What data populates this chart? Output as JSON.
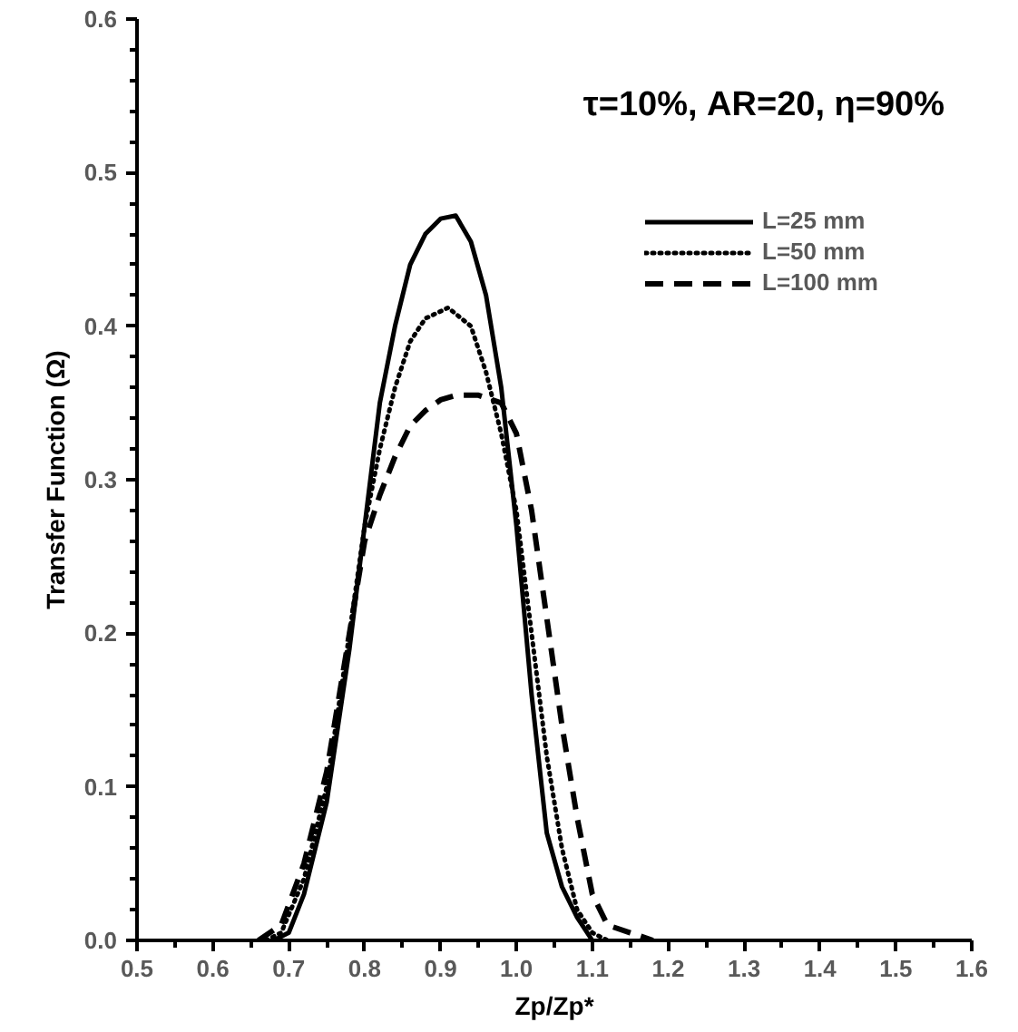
{
  "chart_data": {
    "type": "line",
    "xlabel": "Zp/Zp*",
    "ylabel": "Transfer Function (Ω)",
    "annotations": [
      "τ=10%, AR=20, η=90%"
    ],
    "xlim": [
      0.5,
      1.6
    ],
    "xticks": [
      0.5,
      0.6,
      0.7,
      0.8,
      0.9,
      {
        "value": 1.0,
        "label": "1.0"
      },
      1.1,
      1.2,
      1.3,
      1.4,
      1.5,
      1.6
    ],
    "ylim": [
      0,
      0.6
    ],
    "yticks": [
      {
        "value": 0,
        "label": "0.0"
      },
      0.1,
      0.2,
      0.3,
      0.4,
      0.5,
      0.6
    ],
    "grid": false,
    "legend": "top right",
    "marker": "none",
    "series": [
      {
        "name": "L=25 mm",
        "color": "#000000",
        "line_style": "solid",
        "x": [
          0.68,
          0.7,
          0.72,
          0.75,
          0.78,
          0.8,
          0.82,
          0.84,
          0.86,
          0.88,
          0.9,
          0.92,
          0.94,
          0.96,
          0.98,
          1.0,
          1.02,
          1.04,
          1.06,
          1.08,
          1.1
        ],
        "values": [
          0,
          0.005,
          0.03,
          0.09,
          0.19,
          0.27,
          0.35,
          0.4,
          0.44,
          0.46,
          0.47,
          0.472,
          0.455,
          0.42,
          0.36,
          0.27,
          0.16,
          0.07,
          0.035,
          0.015,
          0
        ]
      },
      {
        "name": "L=50 mm",
        "color": "#000000",
        "line_style": "dotted",
        "x": [
          0.67,
          0.69,
          0.72,
          0.75,
          0.78,
          0.8,
          0.82,
          0.84,
          0.86,
          0.88,
          0.91,
          0.94,
          0.96,
          0.98,
          1.0,
          1.02,
          1.04,
          1.06,
          1.08,
          1.1,
          1.12
        ],
        "values": [
          0,
          0.005,
          0.04,
          0.1,
          0.2,
          0.27,
          0.32,
          0.36,
          0.39,
          0.405,
          0.412,
          0.4,
          0.37,
          0.33,
          0.28,
          0.2,
          0.12,
          0.06,
          0.02,
          0.005,
          0
        ]
      },
      {
        "name": "L=100 mm",
        "color": "#000000",
        "line_style": "dashed",
        "x": [
          0.66,
          0.69,
          0.72,
          0.75,
          0.78,
          0.8,
          0.82,
          0.84,
          0.86,
          0.88,
          0.9,
          0.92,
          0.95,
          0.98,
          1.0,
          1.02,
          1.04,
          1.06,
          1.08,
          1.1,
          1.12,
          1.15,
          1.18
        ],
        "values": [
          0,
          0.01,
          0.05,
          0.11,
          0.2,
          0.26,
          0.29,
          0.315,
          0.335,
          0.345,
          0.352,
          0.355,
          0.355,
          0.35,
          0.33,
          0.28,
          0.21,
          0.14,
          0.08,
          0.03,
          0.01,
          0.005,
          0
        ]
      }
    ]
  }
}
